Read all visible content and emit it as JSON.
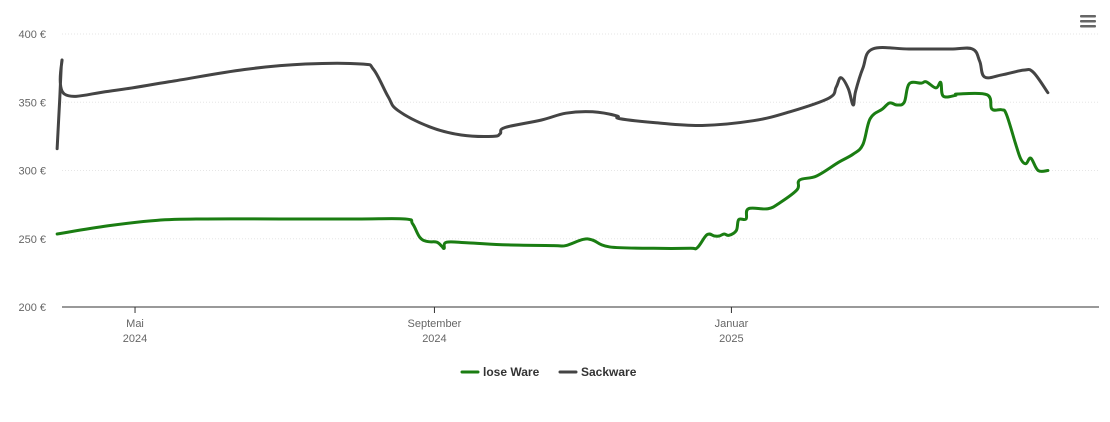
{
  "chart_data": {
    "type": "line",
    "title": "",
    "xlabel": "",
    "ylabel": "",
    "ylim": [
      200,
      400
    ],
    "xlim": [
      "2024-04-01",
      "2025-06-01"
    ],
    "grid": true,
    "legend_position": "bottom-center",
    "y_ticks": [
      {
        "value": 400,
        "label": "400 €"
      },
      {
        "value": 350,
        "label": "350 €"
      },
      {
        "value": 300,
        "label": "300 €"
      },
      {
        "value": 250,
        "label": "250 €"
      },
      {
        "value": 200,
        "label": "200 €"
      }
    ],
    "x_ticks": [
      {
        "date": "2024-05-01",
        "line1": "Mai",
        "line2": "2024"
      },
      {
        "date": "2024-09-01",
        "line1": "September",
        "line2": "2024"
      },
      {
        "date": "2025-01-01",
        "line1": "Januar",
        "line2": "2025"
      }
    ],
    "series": [
      {
        "name": "lose Ware",
        "color": "#1a7d12",
        "points": [
          [
            "2024-03-30",
            253.5
          ],
          [
            "2024-04-20",
            259.5
          ],
          [
            "2024-05-10",
            263.5
          ],
          [
            "2024-05-30",
            264.5
          ],
          [
            "2024-06-30",
            264.5
          ],
          [
            "2024-07-31",
            264.5
          ],
          [
            "2024-08-20",
            264.5
          ],
          [
            "2024-08-23",
            261.0
          ],
          [
            "2024-08-26",
            251.0
          ],
          [
            "2024-08-29",
            248.0
          ],
          [
            "2024-09-02",
            247.5
          ],
          [
            "2024-09-04",
            244.5
          ],
          [
            "2024-09-05",
            243.0
          ],
          [
            "2024-09-06",
            247.5
          ],
          [
            "2024-09-15",
            247.0
          ],
          [
            "2024-10-01",
            245.5
          ],
          [
            "2024-10-20",
            245.0
          ],
          [
            "2024-10-25",
            245.0
          ],
          [
            "2024-11-01",
            249.5
          ],
          [
            "2024-11-05",
            249.0
          ],
          [
            "2024-11-12",
            244.0
          ],
          [
            "2024-11-30",
            243.0
          ],
          [
            "2024-12-15",
            243.0
          ],
          [
            "2024-12-18",
            243.5
          ],
          [
            "2024-12-22",
            253.0
          ],
          [
            "2024-12-25",
            252.0
          ],
          [
            "2024-12-27",
            252.0
          ],
          [
            "2024-12-29",
            253.5
          ],
          [
            "2024-12-31",
            252.5
          ],
          [
            "2025-01-03",
            256.0
          ],
          [
            "2025-01-04",
            264.0
          ],
          [
            "2025-01-07",
            264.5
          ],
          [
            "2025-01-08",
            272.0
          ],
          [
            "2025-01-16",
            272.0
          ],
          [
            "2025-01-21",
            276.5
          ],
          [
            "2025-01-28",
            286.0
          ],
          [
            "2025-01-29",
            293.0
          ],
          [
            "2025-02-05",
            296.0
          ],
          [
            "2025-02-14",
            306.0
          ],
          [
            "2025-02-20",
            312.0
          ],
          [
            "2025-02-24",
            319.0
          ],
          [
            "2025-02-27",
            338.0
          ],
          [
            "2025-03-04",
            345.0
          ],
          [
            "2025-03-07",
            349.5
          ],
          [
            "2025-03-10",
            348.0
          ],
          [
            "2025-03-13",
            350.0
          ],
          [
            "2025-03-15",
            363.5
          ],
          [
            "2025-03-20",
            364.0
          ],
          [
            "2025-03-22",
            365.0
          ],
          [
            "2025-03-26",
            360.5
          ],
          [
            "2025-03-28",
            364.5
          ],
          [
            "2025-03-29",
            354.5
          ],
          [
            "2025-04-03",
            355.0
          ],
          [
            "2025-04-04",
            356.0
          ],
          [
            "2025-04-16",
            355.5
          ],
          [
            "2025-04-18",
            345.0
          ],
          [
            "2025-04-22",
            344.5
          ],
          [
            "2025-04-24",
            341.0
          ],
          [
            "2025-04-28",
            318.0
          ],
          [
            "2025-04-30",
            308.0
          ],
          [
            "2025-05-02",
            305.0
          ],
          [
            "2025-05-04",
            309.0
          ],
          [
            "2025-05-07",
            300.0
          ],
          [
            "2025-05-11",
            300.0
          ]
        ]
      },
      {
        "name": "Sackware",
        "color": "#444444",
        "points": [
          [
            "2024-03-30",
            316.0
          ],
          [
            "2024-03-31",
            350.0
          ],
          [
            "2024-04-01",
            381.0
          ],
          [
            "2024-04-02",
            356.0
          ],
          [
            "2024-04-20",
            358.0
          ],
          [
            "2024-05-15",
            365.0
          ],
          [
            "2024-06-15",
            374.0
          ],
          [
            "2024-07-10",
            378.0
          ],
          [
            "2024-08-02",
            378.0
          ],
          [
            "2024-08-07",
            374.0
          ],
          [
            "2024-08-13",
            354.0
          ],
          [
            "2024-08-17",
            344.0
          ],
          [
            "2024-08-30",
            332.0
          ],
          [
            "2024-09-12",
            326.0
          ],
          [
            "2024-09-25",
            325.0
          ],
          [
            "2024-09-28",
            327.0
          ],
          [
            "2024-09-30",
            331.5
          ],
          [
            "2024-10-15",
            337.0
          ],
          [
            "2024-10-25",
            342.0
          ],
          [
            "2024-11-05",
            343.0
          ],
          [
            "2024-11-15",
            340.0
          ],
          [
            "2024-11-16",
            338.0
          ],
          [
            "2024-12-01",
            335.0
          ],
          [
            "2024-12-20",
            333.0
          ],
          [
            "2025-01-10",
            336.5
          ],
          [
            "2025-01-25",
            343.0
          ],
          [
            "2025-02-10",
            353.0
          ],
          [
            "2025-02-13",
            361.0
          ],
          [
            "2025-02-15",
            368.0
          ],
          [
            "2025-02-18",
            360.0
          ],
          [
            "2025-02-20",
            348.0
          ],
          [
            "2025-02-21",
            358.0
          ],
          [
            "2025-02-24",
            375.0
          ],
          [
            "2025-02-28",
            389.0
          ],
          [
            "2025-03-15",
            389.0
          ],
          [
            "2025-04-01",
            389.0
          ],
          [
            "2025-04-10",
            389.0
          ],
          [
            "2025-04-13",
            380.0
          ],
          [
            "2025-04-15",
            368.5
          ],
          [
            "2025-04-22",
            370.0
          ],
          [
            "2025-05-01",
            373.5
          ],
          [
            "2025-05-05",
            372.0
          ],
          [
            "2025-05-11",
            357.0
          ]
        ]
      }
    ]
  },
  "ui": {
    "menu_icon": "hamburger-menu-icon"
  }
}
